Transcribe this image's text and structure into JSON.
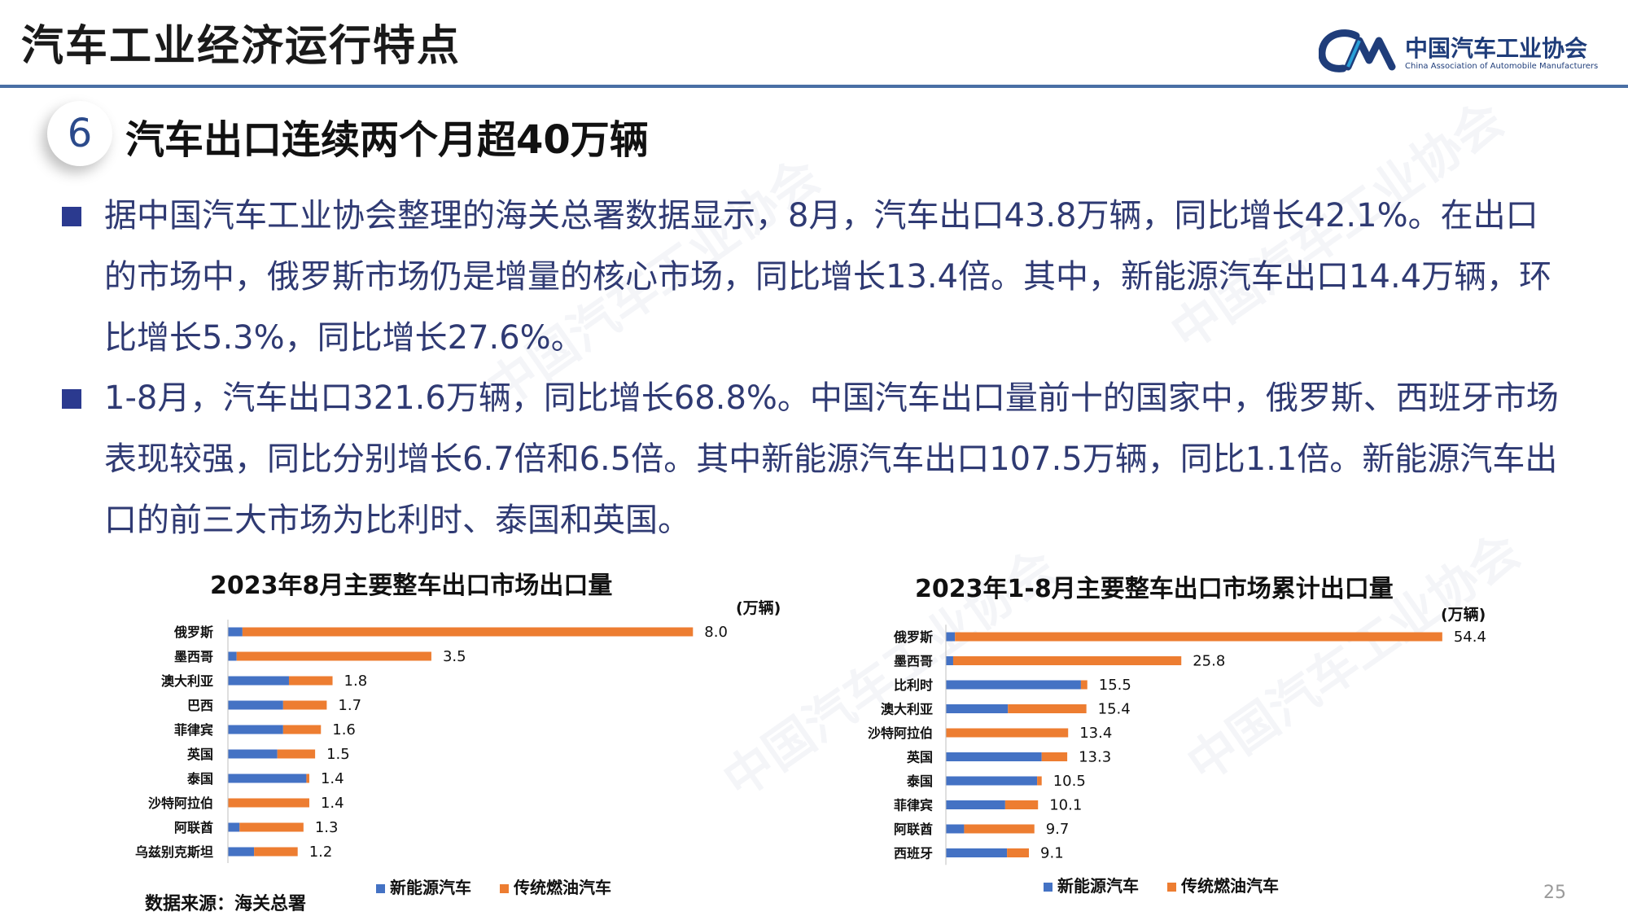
{
  "header": {
    "title": "汽车工业经济运行特点",
    "logo_cn": "中国汽车工业协会",
    "logo_en": "China Association of Automobile Manufacturers"
  },
  "section": {
    "number": "6",
    "title": "汽车出口连续两个月超40万辆"
  },
  "paragraphs": [
    "据中国汽车工业协会整理的海关总署数据显示，8月，汽车出口43.8万辆，同比增长42.1%。在出口的市场中，俄罗斯市场仍是增量的核心市场，同比增长13.4倍。其中，新能源汽车出口14.4万辆，环比增长5.3%，同比增长27.6%。",
    "1-8月，汽车出口321.6万辆，同比增长68.8%。中国汽车出口量前十的国家中，俄罗斯、西班牙市场表现较强，同比分别增长6.7倍和6.5倍。其中新能源汽车出口107.5万辆，同比1.1倍。新能源汽车出口的前三大市场为比利时、泰国和英国。"
  ],
  "source": "数据来源：海关总署",
  "page_number": "25",
  "colors": {
    "nev": "#4472c4",
    "ice": "#ed7d31",
    "text": "#2f3a73"
  },
  "chart_data": [
    {
      "type": "bar",
      "orientation": "horizontal",
      "stacked": true,
      "title": "2023年8月主要整车出口市场出口量",
      "unit": "(万辆)",
      "categories": [
        "俄罗斯",
        "墨西哥",
        "澳大利亚",
        "巴西",
        "菲律宾",
        "英国",
        "泰国",
        "沙特阿拉伯",
        "阿联酋",
        "乌兹别克斯坦"
      ],
      "totals": [
        8.0,
        3.5,
        1.8,
        1.7,
        1.6,
        1.5,
        1.4,
        1.4,
        1.3,
        1.2
      ],
      "total_labels": [
        "8.0",
        "3.5",
        "1.8",
        "1.7",
        "1.6",
        "1.5",
        "1.4",
        "1.4",
        "1.3",
        "1.2"
      ],
      "series": [
        {
          "name": "新能源汽车",
          "values": [
            0.25,
            0.15,
            1.05,
            0.95,
            0.95,
            0.85,
            1.35,
            0.0,
            0.2,
            0.45
          ]
        },
        {
          "name": "传统燃油汽车",
          "values": [
            7.75,
            3.35,
            0.75,
            0.75,
            0.65,
            0.65,
            0.05,
            1.4,
            1.1,
            0.75
          ]
        }
      ],
      "xlim": [
        0,
        8.5
      ]
    },
    {
      "type": "bar",
      "orientation": "horizontal",
      "stacked": true,
      "title": "2023年1-8月主要整车出口市场累计出口量",
      "unit": "(万辆)",
      "categories": [
        "俄罗斯",
        "墨西哥",
        "比利时",
        "澳大利亚",
        "沙特阿拉伯",
        "英国",
        "泰国",
        "菲律宾",
        "阿联酋",
        "西班牙"
      ],
      "totals": [
        54.4,
        25.8,
        15.5,
        15.4,
        13.4,
        13.3,
        10.5,
        10.1,
        9.7,
        9.1
      ],
      "total_labels": [
        "54.4",
        "25.8",
        "15.5",
        "15.4",
        "13.4",
        "13.3",
        "10.5",
        "10.1",
        "9.7",
        "9.1"
      ],
      "series": [
        {
          "name": "新能源汽车",
          "values": [
            1.0,
            0.8,
            14.8,
            6.8,
            0.0,
            10.5,
            10.0,
            6.5,
            2.0,
            6.7
          ]
        },
        {
          "name": "传统燃油汽车",
          "values": [
            53.4,
            25.0,
            0.7,
            8.6,
            13.4,
            2.8,
            0.5,
            3.6,
            7.7,
            2.4
          ]
        }
      ],
      "xlim": [
        0,
        57
      ]
    }
  ]
}
